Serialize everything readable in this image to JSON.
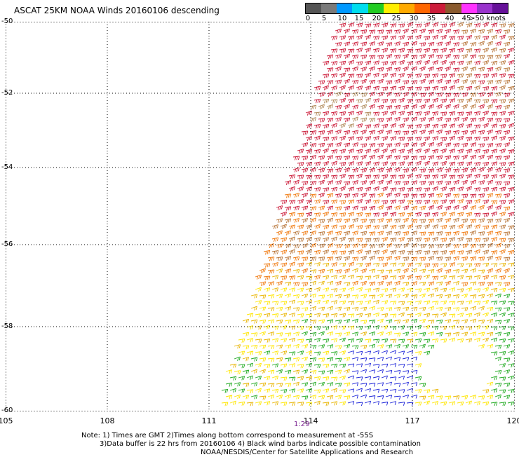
{
  "title": "ASCAT 25KM NOAA Winds 20160106 descending",
  "legend": {
    "ticks": [
      "0",
      "5",
      "10",
      "15",
      "20",
      "25",
      "30",
      "35",
      "40",
      "45",
      ">50 knots"
    ],
    "colors": [
      "#555555",
      "#7a7a7a",
      "#0099ff",
      "#00ddee",
      "#22cc22",
      "#ffee00",
      "#ffaa00",
      "#ff6600",
      "#cc1c3a",
      "#8a5a2e",
      "#ff33ff",
      "#9933cc",
      "#661199"
    ]
  },
  "axes": {
    "x_ticks": [
      "105",
      "108",
      "111",
      "114",
      "117",
      "120"
    ],
    "y_ticks": [
      "-50",
      "-52",
      "-54",
      "-56",
      "-58",
      "-60"
    ]
  },
  "time_label": "1:29",
  "notes": [
    "Note: 1) Times are GMT 2)Times along bottom correspond to measurement at -55S",
    "3)Data buffer is 22 hrs from 20160106 4) Black wind barbs indicate possible contamination",
    "NOAA/NESDIS/Center for Satellite Applications and Research"
  ]
}
